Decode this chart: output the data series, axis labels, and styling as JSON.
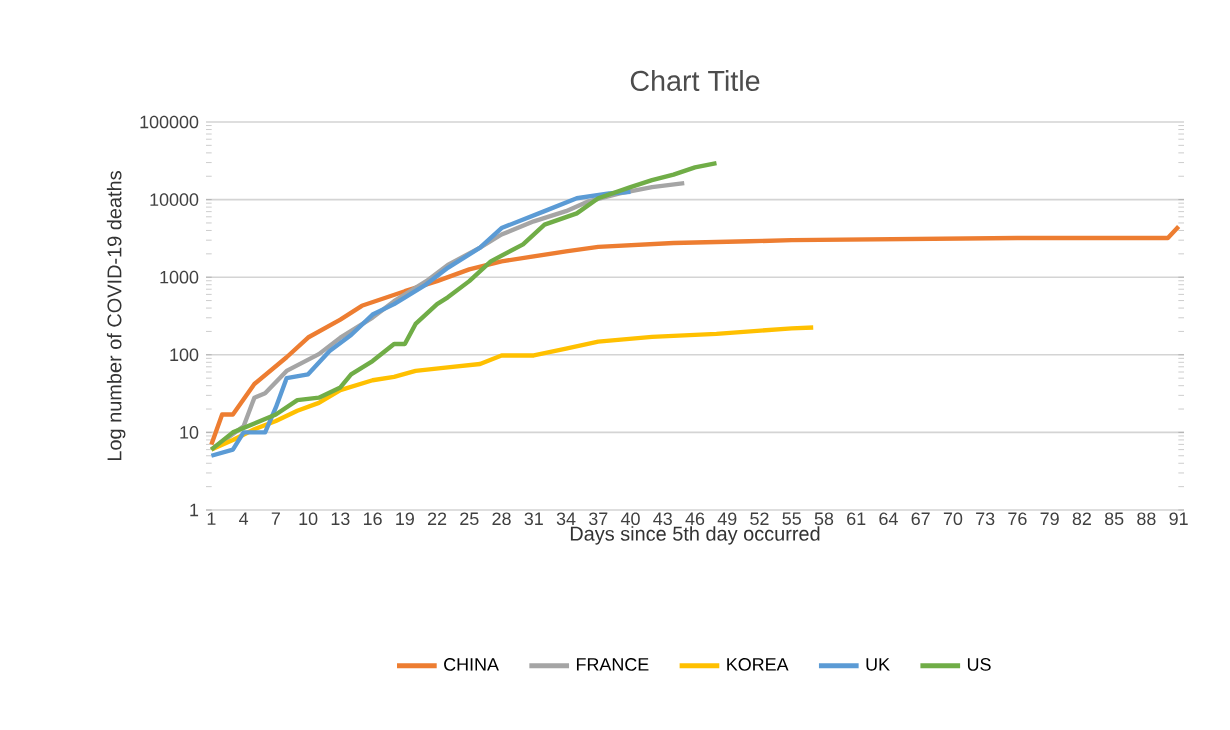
{
  "chart_data": {
    "type": "line",
    "title": "Chart Title",
    "xlabel": "Days since 5th day occurred",
    "ylabel": "Log number of COVID-19 deaths",
    "log": "y",
    "grid": "y",
    "legend": "bottom",
    "marker": "none",
    "line_style": "solid",
    "xlim": [
      0.5,
      91.5
    ],
    "xticks": [
      1,
      4,
      7,
      10,
      13,
      16,
      19,
      22,
      25,
      28,
      31,
      34,
      37,
      40,
      43,
      46,
      49,
      52,
      55,
      58,
      61,
      64,
      67,
      70,
      73,
      76,
      79,
      82,
      85,
      88,
      91
    ],
    "ylim": [
      1,
      100000
    ],
    "yticks": [
      1,
      10,
      100,
      1000,
      10000,
      100000
    ],
    "series": [
      {
        "name": "CHINA",
        "color": "#ed7d31",
        "x": [
          1,
          2,
          3,
          5,
          8,
          10,
          13,
          15,
          19,
          22,
          25,
          28,
          34,
          37,
          44,
          51,
          55,
          76,
          90,
          91
        ],
        "values": [
          7,
          17,
          17,
          42,
          93,
          167,
          284,
          428,
          660,
          890,
          1260,
          1600,
          2150,
          2460,
          2760,
          2900,
          3000,
          3200,
          3200,
          4500
        ]
      },
      {
        "name": "FRANCE",
        "color": "#a5a5a5",
        "x": [
          1,
          4,
          5,
          6,
          8,
          11,
          13,
          16,
          18,
          21,
          23,
          26,
          28,
          31,
          34,
          36,
          39,
          42,
          45
        ],
        "values": [
          6,
          12,
          28,
          32,
          62,
          102,
          166,
          302,
          490,
          890,
          1440,
          2400,
          3550,
          5250,
          7100,
          9400,
          12000,
          14500,
          16300
        ]
      },
      {
        "name": "KOREA",
        "color": "#ffc000",
        "x": [
          1,
          3,
          5,
          7,
          9,
          11,
          13,
          16,
          18,
          20,
          23,
          26,
          28,
          31,
          34,
          37,
          42,
          48,
          55,
          57
        ],
        "values": [
          6,
          8,
          11,
          14,
          19,
          24,
          35,
          47,
          52,
          62,
          69,
          76,
          98,
          98,
          120,
          148,
          170,
          186,
          219,
          225
        ]
      },
      {
        "name": "UK",
        "color": "#5b9bd5",
        "x": [
          1,
          3,
          4,
          6,
          7,
          8,
          10,
          12,
          14,
          16,
          18,
          21,
          23,
          26,
          28,
          32,
          35,
          38,
          40
        ],
        "values": [
          5,
          6,
          10,
          10,
          21,
          50,
          56,
          112,
          180,
          330,
          450,
          810,
          1320,
          2400,
          4300,
          7100,
          10400,
          12000,
          12600
        ]
      },
      {
        "name": "US",
        "color": "#70ad47",
        "x": [
          1,
          3,
          5,
          7,
          9,
          11,
          13,
          14,
          16,
          18,
          19,
          20,
          22,
          23,
          25,
          27,
          30,
          32,
          35,
          37,
          40,
          42,
          44,
          46,
          48
        ],
        "values": [
          6,
          10,
          13,
          17,
          26,
          28,
          38,
          56,
          83,
          138,
          138,
          250,
          450,
          550,
          890,
          1600,
          2650,
          4750,
          6650,
          10400,
          14500,
          17800,
          21000,
          26000,
          29500
        ]
      }
    ]
  }
}
